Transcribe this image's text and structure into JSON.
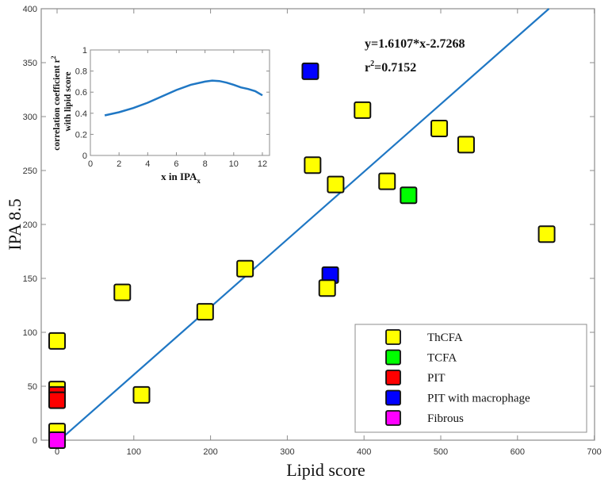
{
  "chart_data": {
    "type": "scatter",
    "xlabel": "Lipid score",
    "ylabel": "IPA 8.5",
    "xlim": [
      -20,
      700
    ],
    "ylim": [
      0,
      400
    ],
    "xticks": [
      0,
      100,
      200,
      300,
      400,
      500,
      600,
      700
    ],
    "yticks": [
      0,
      50,
      100,
      150,
      200,
      250,
      300,
      350,
      400
    ],
    "xtick_labels": [
      "0",
      "100",
      "200",
      "300",
      "400",
      "500",
      "600",
      "700"
    ],
    "ytick_labels": [
      "0",
      "50",
      "100",
      "150",
      "200",
      "250",
      "300",
      "350",
      "400"
    ],
    "grid": false,
    "legend_position": "bottom-right",
    "series": [
      {
        "name": "ThCFA",
        "color": "#ffff00",
        "points": [
          [
            0,
            92
          ],
          [
            0,
            47
          ],
          [
            0,
            8
          ],
          [
            110,
            42
          ],
          [
            85,
            137
          ],
          [
            193,
            119
          ],
          [
            245,
            159
          ],
          [
            333,
            255
          ],
          [
            352,
            141
          ],
          [
            363,
            237
          ],
          [
            398,
            306
          ],
          [
            430,
            240
          ],
          [
            498,
            289
          ],
          [
            533,
            274
          ],
          [
            638,
            191
          ]
        ]
      },
      {
        "name": "TCFA",
        "color": "#00ff00",
        "points": [
          [
            458,
            227
          ]
        ]
      },
      {
        "name": "PIT",
        "color": "#ff0000",
        "points": [
          [
            0,
            42
          ],
          [
            0,
            37
          ]
        ]
      },
      {
        "name": "PIT with macrophage",
        "color": "#0000ff",
        "points": [
          [
            330,
            342
          ],
          [
            356,
            153
          ]
        ]
      },
      {
        "name": "Fibrous",
        "color": "#ff00ff",
        "points": [
          [
            0,
            0
          ]
        ]
      }
    ],
    "fit_line": {
      "color": "#1f77c4",
      "x": [
        0,
        641
      ],
      "y": [
        -2,
        400
      ]
    },
    "annotation": {
      "equation": "y=1.6107*x-2.7268",
      "r2_prefix": "r",
      "r2_sup": "2",
      "r2_value": "=0.7152"
    },
    "inset": {
      "type": "line",
      "xlabel_main": "x in IPA",
      "xlabel_sub": "x",
      "ylabel_line1": "correlation coefficient r",
      "ylabel_line1_sup": "2",
      "ylabel_line2": "with lipid score",
      "xlim": [
        0,
        12.5
      ],
      "ylim": [
        0,
        1
      ],
      "xticks": [
        0,
        2,
        4,
        6,
        8,
        10,
        12
      ],
      "yticks": [
        0,
        0.2,
        0.4,
        0.6,
        0.8,
        1
      ],
      "xtick_labels": [
        "0",
        "2",
        "4",
        "6",
        "8",
        "10",
        "12"
      ],
      "ytick_labels": [
        "0",
        "0.2",
        "0.4",
        "0.6",
        "0.8",
        "1"
      ],
      "color": "#1f77c4",
      "x": [
        1,
        2,
        3,
        4,
        5,
        6,
        7,
        8,
        8.5,
        9,
        9.5,
        10,
        10.5,
        11,
        11.5,
        12
      ],
      "y": [
        0.38,
        0.41,
        0.45,
        0.5,
        0.56,
        0.62,
        0.67,
        0.7,
        0.71,
        0.705,
        0.69,
        0.67,
        0.645,
        0.63,
        0.61,
        0.57
      ]
    }
  }
}
